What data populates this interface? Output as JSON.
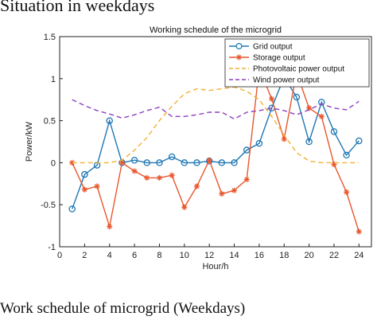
{
  "captions": {
    "top": "Situation in weekdays",
    "bottom": "Work schedule of microgrid (Weekdays)"
  },
  "chart_data": {
    "type": "line",
    "title": "Working schedule of the microgrid",
    "xlabel": "Hour/h",
    "ylabel": "Power/kW",
    "xlim": [
      0,
      25
    ],
    "ylim": [
      -1,
      1.5
    ],
    "xticks": [
      "0",
      "2",
      "4",
      "6",
      "8",
      "10",
      "12",
      "14",
      "16",
      "18",
      "20",
      "22",
      "24"
    ],
    "yticks": [
      "-1",
      "-0.5",
      "0",
      "0.5",
      "1",
      "1.5"
    ],
    "grid": false,
    "legend_position": "top-right",
    "x": [
      1,
      2,
      3,
      4,
      5,
      6,
      7,
      8,
      9,
      10,
      11,
      12,
      13,
      14,
      15,
      16,
      17,
      18,
      19,
      20,
      21,
      22,
      23,
      24
    ],
    "series": [
      {
        "name": "Grid output",
        "color": "#1f77b4",
        "style": "solid",
        "marker": "circle",
        "values": [
          -0.55,
          -0.14,
          -0.03,
          0.5,
          0.0,
          0.03,
          0.0,
          0.0,
          0.07,
          0.0,
          0.0,
          0.02,
          0.0,
          0.0,
          0.15,
          0.23,
          0.65,
          1.02,
          0.78,
          0.25,
          0.72,
          0.37,
          0.09,
          0.26
        ]
      },
      {
        "name": "Storage output",
        "color": "#e8572e",
        "style": "solid",
        "marker": "star",
        "values": [
          0.0,
          -0.32,
          -0.28,
          -0.76,
          0.0,
          -0.1,
          -0.18,
          -0.18,
          -0.15,
          -0.53,
          -0.28,
          0.03,
          -0.37,
          -0.33,
          -0.2,
          1.12,
          0.76,
          0.28,
          1.07,
          0.65,
          0.55,
          -0.02,
          -0.35,
          -0.82
        ]
      },
      {
        "name": "Photovoltaic power output",
        "color": "#f2b134",
        "style": "dashed",
        "marker": "none",
        "values": [
          0,
          0,
          0,
          0,
          0.03,
          0.15,
          0.3,
          0.5,
          0.67,
          0.82,
          0.88,
          0.86,
          0.88,
          0.9,
          0.85,
          0.75,
          0.55,
          0.33,
          0.12,
          0.02,
          0,
          0,
          0,
          0
        ]
      },
      {
        "name": "Wind power output",
        "color": "#8e3fbf",
        "style": "dashed",
        "marker": "none",
        "values": [
          0.75,
          0.68,
          0.62,
          0.58,
          0.53,
          0.57,
          0.62,
          0.66,
          0.55,
          0.55,
          0.57,
          0.6,
          0.6,
          0.52,
          0.6,
          0.62,
          0.65,
          0.62,
          0.57,
          0.63,
          0.7,
          0.65,
          0.63,
          0.73
        ]
      }
    ]
  }
}
